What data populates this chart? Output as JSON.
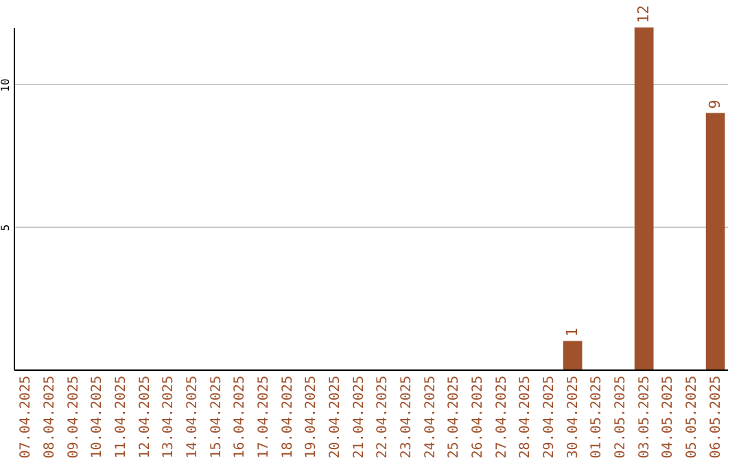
{
  "chart_data": {
    "type": "bar",
    "categories": [
      "07.04.2025",
      "08.04.2025",
      "09.04.2025",
      "10.04.2025",
      "11.04.2025",
      "12.04.2025",
      "13.04.2025",
      "14.04.2025",
      "15.04.2025",
      "16.04.2025",
      "17.04.2025",
      "18.04.2025",
      "19.04.2025",
      "20.04.2025",
      "21.04.2025",
      "22.04.2025",
      "23.04.2025",
      "24.04.2025",
      "25.04.2025",
      "26.04.2025",
      "27.04.2025",
      "28.04.2025",
      "29.04.2025",
      "30.04.2025",
      "01.05.2025",
      "02.05.2025",
      "03.05.2025",
      "04.05.2025",
      "05.05.2025",
      "06.05.2025"
    ],
    "values": [
      0,
      0,
      0,
      0,
      0,
      0,
      0,
      0,
      0,
      0,
      0,
      0,
      0,
      0,
      0,
      0,
      0,
      0,
      0,
      0,
      0,
      0,
      0,
      1,
      0,
      0,
      12,
      0,
      0,
      9
    ],
    "value_labels": [
      null,
      null,
      null,
      null,
      null,
      null,
      null,
      null,
      null,
      null,
      null,
      null,
      null,
      null,
      null,
      null,
      null,
      null,
      null,
      null,
      null,
      null,
      null,
      "1",
      null,
      null,
      "12",
      null,
      null,
      "9"
    ],
    "color": "#a0522d",
    "ylim": [
      0,
      12
    ],
    "yticks": [
      5,
      10
    ],
    "grid": "y"
  }
}
